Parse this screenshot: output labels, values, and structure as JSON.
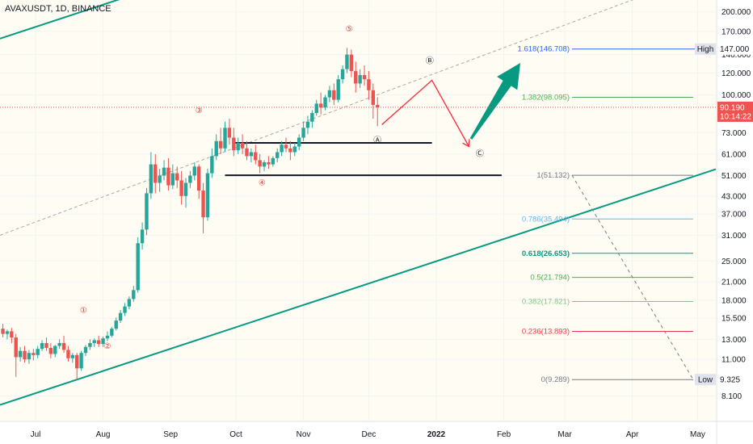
{
  "chart_data": {
    "type": "candlestick",
    "title": "AVAXUSDT, 1D, BINANCE",
    "y_scale": "log",
    "ylim": [
      7.2,
      215
    ],
    "y_ticks": [
      "200.000",
      "170.000",
      "147.000",
      "140.000",
      "120.000",
      "100.000",
      "90.190",
      "73.000",
      "61.000",
      "51.000",
      "43.000",
      "37.000",
      "31.000",
      "25.000",
      "21.000",
      "18.000",
      "15.500",
      "13.000",
      "11.000",
      "9.325",
      "8.100"
    ],
    "x_ticks": [
      "Jul",
      "Aug",
      "Sep",
      "Oct",
      "Nov",
      "Dec",
      "2022",
      "Feb",
      "Mar",
      "Apr",
      "May"
    ],
    "price": {
      "label": "90.190",
      "countdown": "10:14:22",
      "value": 90.19
    },
    "high_tag": {
      "label": "High",
      "value": "147.000"
    },
    "low_tag": {
      "label": "Low",
      "value": "9.325"
    },
    "fib_levels": [
      {
        "label": "1.618(146.708)",
        "value": 146.708,
        "color": "#2962ff"
      },
      {
        "label": "1.382(98.095)",
        "value": 98.095,
        "color": "#4caf50"
      },
      {
        "label": "1(51.132)",
        "value": 51.132,
        "color": "#787b86"
      },
      {
        "label": "0.786(35.494)",
        "value": 35.494,
        "color": "#64b5f6"
      },
      {
        "label": "0.618(26.653)",
        "value": 26.653,
        "color": "#089981"
      },
      {
        "label": "0.5(21.794)",
        "value": 21.794,
        "color": "#4caf50"
      },
      {
        "label": "0.382(17.821)",
        "value": 17.821,
        "color": "#81c784"
      },
      {
        "label": "0.236(13.893)",
        "value": 13.893,
        "color": "#f23645"
      },
      {
        "label": "0(9.289)",
        "value": 9.289,
        "color": "#787b86"
      }
    ],
    "wave_labels": [
      {
        "label": "①",
        "date": "2021-07-23",
        "value": 16.2,
        "color": "#e53935"
      },
      {
        "label": "②",
        "date": "2021-08-03",
        "value": 12.0,
        "color": "#e53935"
      },
      {
        "label": "③",
        "date": "2021-09-14",
        "value": 86,
        "color": "#e53935"
      },
      {
        "label": "④",
        "date": "2021-10-13",
        "value": 47,
        "color": "#e53935"
      },
      {
        "label": "⑤",
        "date": "2021-11-22",
        "value": 170,
        "color": "#e53935"
      },
      {
        "label": "Ⓐ",
        "date": "2021-12-05",
        "value": 67,
        "color": "#131722"
      },
      {
        "label": "Ⓑ",
        "date": "2021-12-29",
        "value": 130,
        "color": "#131722"
      },
      {
        "label": "Ⓒ",
        "date": "2022-01-21",
        "value": 60,
        "color": "#131722"
      }
    ],
    "candles": [
      {
        "date": "2021-06-16",
        "o": 14.2,
        "h": 14.8,
        "c": 13.6,
        "l": 13.2
      },
      {
        "date": "2021-06-18",
        "o": 13.6,
        "h": 14.1,
        "c": 13.9,
        "l": 13.0
      },
      {
        "date": "2021-06-20",
        "o": 13.9,
        "h": 14.3,
        "c": 13.2,
        "l": 12.6
      },
      {
        "date": "2021-06-22",
        "o": 13.2,
        "h": 13.6,
        "c": 11.2,
        "l": 9.5
      },
      {
        "date": "2021-06-24",
        "o": 11.2,
        "h": 12.2,
        "c": 11.8,
        "l": 10.8
      },
      {
        "date": "2021-06-26",
        "o": 11.8,
        "h": 12.3,
        "c": 11.0,
        "l": 10.7
      },
      {
        "date": "2021-06-28",
        "o": 11.0,
        "h": 11.9,
        "c": 11.6,
        "l": 10.6
      },
      {
        "date": "2021-06-30",
        "o": 11.6,
        "h": 12.0,
        "c": 11.4,
        "l": 10.9
      },
      {
        "date": "2021-07-02",
        "o": 11.4,
        "h": 12.3,
        "c": 12.0,
        "l": 11.1
      },
      {
        "date": "2021-07-04",
        "o": 12.0,
        "h": 12.9,
        "c": 12.6,
        "l": 11.8
      },
      {
        "date": "2021-07-06",
        "o": 12.6,
        "h": 13.2,
        "c": 12.1,
        "l": 11.8
      },
      {
        "date": "2021-07-08",
        "o": 12.1,
        "h": 12.6,
        "c": 11.5,
        "l": 11.1
      },
      {
        "date": "2021-07-10",
        "o": 11.5,
        "h": 12.4,
        "c": 12.3,
        "l": 11.2
      },
      {
        "date": "2021-07-12",
        "o": 12.3,
        "h": 13.0,
        "c": 12.6,
        "l": 12.0
      },
      {
        "date": "2021-07-14",
        "o": 12.6,
        "h": 13.4,
        "c": 11.9,
        "l": 11.6
      },
      {
        "date": "2021-07-16",
        "o": 11.9,
        "h": 12.3,
        "c": 11.1,
        "l": 10.8
      },
      {
        "date": "2021-07-18",
        "o": 11.1,
        "h": 11.6,
        "c": 11.4,
        "l": 10.7
      },
      {
        "date": "2021-07-20",
        "o": 11.4,
        "h": 11.6,
        "c": 10.2,
        "l": 9.3
      },
      {
        "date": "2021-07-22",
        "o": 10.2,
        "h": 11.8,
        "c": 11.6,
        "l": 10.0
      },
      {
        "date": "2021-07-24",
        "o": 11.6,
        "h": 12.4,
        "c": 12.2,
        "l": 11.3
      },
      {
        "date": "2021-07-26",
        "o": 12.2,
        "h": 13.0,
        "c": 12.6,
        "l": 11.9
      },
      {
        "date": "2021-07-28",
        "o": 12.6,
        "h": 13.1,
        "c": 12.9,
        "l": 12.2
      },
      {
        "date": "2021-07-30",
        "o": 12.9,
        "h": 13.4,
        "c": 12.5,
        "l": 12.2
      },
      {
        "date": "2021-08-01",
        "o": 12.5,
        "h": 13.3,
        "c": 13.1,
        "l": 12.2
      },
      {
        "date": "2021-08-03",
        "o": 13.1,
        "h": 13.9,
        "c": 13.4,
        "l": 12.8
      },
      {
        "date": "2021-08-05",
        "o": 13.4,
        "h": 14.4,
        "c": 14.2,
        "l": 13.2
      },
      {
        "date": "2021-08-07",
        "o": 14.2,
        "h": 15.6,
        "c": 15.2,
        "l": 14.0
      },
      {
        "date": "2021-08-09",
        "o": 15.2,
        "h": 16.6,
        "c": 16.2,
        "l": 14.9
      },
      {
        "date": "2021-08-11",
        "o": 16.2,
        "h": 17.6,
        "c": 17.1,
        "l": 15.8
      },
      {
        "date": "2021-08-13",
        "o": 17.1,
        "h": 18.6,
        "c": 18.2,
        "l": 16.7
      },
      {
        "date": "2021-08-15",
        "o": 18.2,
        "h": 20.3,
        "c": 19.6,
        "l": 17.8
      },
      {
        "date": "2021-08-17",
        "o": 19.6,
        "h": 30.5,
        "c": 29.0,
        "l": 19.2
      },
      {
        "date": "2021-08-19",
        "o": 29.0,
        "h": 34.5,
        "c": 32.5,
        "l": 27.5
      },
      {
        "date": "2021-08-21",
        "o": 32.5,
        "h": 46.0,
        "c": 44.0,
        "l": 31.0
      },
      {
        "date": "2021-08-23",
        "o": 44.0,
        "h": 62.0,
        "c": 56.0,
        "l": 42.0
      },
      {
        "date": "2021-08-25",
        "o": 56.0,
        "h": 61.0,
        "c": 48.0,
        "l": 44.0
      },
      {
        "date": "2021-08-27",
        "o": 48.0,
        "h": 54.0,
        "c": 51.0,
        "l": 44.5
      },
      {
        "date": "2021-08-29",
        "o": 51.0,
        "h": 58.0,
        "c": 54.5,
        "l": 49.0
      },
      {
        "date": "2021-08-31",
        "o": 54.5,
        "h": 59.0,
        "c": 47.0,
        "l": 45.0
      },
      {
        "date": "2021-09-02",
        "o": 47.0,
        "h": 56.0,
        "c": 52.0,
        "l": 45.5
      },
      {
        "date": "2021-09-04",
        "o": 52.0,
        "h": 55.0,
        "c": 49.0,
        "l": 46.0
      },
      {
        "date": "2021-09-06",
        "o": 49.0,
        "h": 53.0,
        "c": 43.0,
        "l": 40.0
      },
      {
        "date": "2021-09-08",
        "o": 43.0,
        "h": 50.0,
        "c": 48.0,
        "l": 39.0
      },
      {
        "date": "2021-09-10",
        "o": 48.0,
        "h": 53.0,
        "c": 51.0,
        "l": 46.0
      },
      {
        "date": "2021-09-12",
        "o": 51.0,
        "h": 57.0,
        "c": 55.0,
        "l": 49.0
      },
      {
        "date": "2021-09-14",
        "o": 55.0,
        "h": 56.0,
        "c": 45.0,
        "l": 42.0
      },
      {
        "date": "2021-09-16",
        "o": 45.0,
        "h": 48.0,
        "c": 36.0,
        "l": 31.5
      },
      {
        "date": "2021-09-18",
        "o": 36.0,
        "h": 54.0,
        "c": 52.0,
        "l": 35.0
      },
      {
        "date": "2021-09-20",
        "o": 52.0,
        "h": 64.0,
        "c": 60.0,
        "l": 50.0
      },
      {
        "date": "2021-09-22",
        "o": 60.0,
        "h": 72.0,
        "c": 68.0,
        "l": 58.0
      },
      {
        "date": "2021-09-24",
        "o": 68.0,
        "h": 76.0,
        "c": 64.0,
        "l": 61.0
      },
      {
        "date": "2021-09-26",
        "o": 64.0,
        "h": 80.0,
        "c": 76.0,
        "l": 62.0
      },
      {
        "date": "2021-09-28",
        "o": 76.0,
        "h": 82.0,
        "c": 70.0,
        "l": 66.0
      },
      {
        "date": "2021-09-30",
        "o": 70.0,
        "h": 76.0,
        "c": 63.0,
        "l": 60.0
      },
      {
        "date": "2021-10-02",
        "o": 63.0,
        "h": 70.0,
        "c": 67.0,
        "l": 61.0
      },
      {
        "date": "2021-10-04",
        "o": 67.0,
        "h": 72.0,
        "c": 64.0,
        "l": 61.0
      },
      {
        "date": "2021-10-06",
        "o": 64.0,
        "h": 68.0,
        "c": 60.0,
        "l": 58.0
      },
      {
        "date": "2021-10-08",
        "o": 60.0,
        "h": 64.0,
        "c": 62.0,
        "l": 57.0
      },
      {
        "date": "2021-10-10",
        "o": 62.0,
        "h": 66.0,
        "c": 58.0,
        "l": 56.0
      },
      {
        "date": "2021-10-12",
        "o": 58.0,
        "h": 61.0,
        "c": 55.0,
        "l": 52.0
      },
      {
        "date": "2021-10-14",
        "o": 55.0,
        "h": 58.0,
        "c": 57.0,
        "l": 53.0
      },
      {
        "date": "2021-10-16",
        "o": 57.0,
        "h": 60.0,
        "c": 56.0,
        "l": 54.0
      },
      {
        "date": "2021-10-18",
        "o": 56.0,
        "h": 60.0,
        "c": 59.0,
        "l": 55.0
      },
      {
        "date": "2021-10-20",
        "o": 59.0,
        "h": 64.0,
        "c": 62.0,
        "l": 57.0
      },
      {
        "date": "2021-10-22",
        "o": 62.0,
        "h": 68.0,
        "c": 66.0,
        "l": 60.0
      },
      {
        "date": "2021-10-24",
        "o": 66.0,
        "h": 70.0,
        "c": 64.0,
        "l": 62.0
      },
      {
        "date": "2021-10-26",
        "o": 64.0,
        "h": 68.0,
        "c": 62.0,
        "l": 58.0
      },
      {
        "date": "2021-10-28",
        "o": 62.0,
        "h": 67.0,
        "c": 65.0,
        "l": 60.0
      },
      {
        "date": "2021-10-30",
        "o": 65.0,
        "h": 72.0,
        "c": 70.0,
        "l": 63.0
      },
      {
        "date": "2021-11-01",
        "o": 70.0,
        "h": 80.0,
        "c": 76.0,
        "l": 68.0
      },
      {
        "date": "2021-11-03",
        "o": 76.0,
        "h": 84.0,
        "c": 80.0,
        "l": 72.0
      },
      {
        "date": "2021-11-05",
        "o": 80.0,
        "h": 88.0,
        "c": 86.0,
        "l": 76.0
      },
      {
        "date": "2021-11-07",
        "o": 86.0,
        "h": 96.0,
        "c": 93.0,
        "l": 84.0
      },
      {
        "date": "2021-11-09",
        "o": 93.0,
        "h": 102.0,
        "c": 90.0,
        "l": 85.0
      },
      {
        "date": "2021-11-11",
        "o": 90.0,
        "h": 100.0,
        "c": 98.0,
        "l": 88.0
      },
      {
        "date": "2021-11-13",
        "o": 98.0,
        "h": 108.0,
        "c": 104.0,
        "l": 94.0
      },
      {
        "date": "2021-11-15",
        "o": 104.0,
        "h": 110.0,
        "c": 96.0,
        "l": 92.0
      },
      {
        "date": "2021-11-17",
        "o": 96.0,
        "h": 118.0,
        "c": 114.0,
        "l": 94.0
      },
      {
        "date": "2021-11-19",
        "o": 114.0,
        "h": 128.0,
        "c": 124.0,
        "l": 110.0
      },
      {
        "date": "2021-11-21",
        "o": 124.0,
        "h": 148.0,
        "c": 140.0,
        "l": 120.0
      },
      {
        "date": "2021-11-23",
        "o": 140.0,
        "h": 146.0,
        "c": 122.0,
        "l": 116.0
      },
      {
        "date": "2021-11-25",
        "o": 122.0,
        "h": 132.0,
        "c": 110.0,
        "l": 102.0
      },
      {
        "date": "2021-11-27",
        "o": 110.0,
        "h": 124.0,
        "c": 118.0,
        "l": 106.0
      },
      {
        "date": "2021-11-29",
        "o": 118.0,
        "h": 128.0,
        "c": 114.0,
        "l": 108.0
      },
      {
        "date": "2021-12-01",
        "o": 114.0,
        "h": 122.0,
        "c": 104.0,
        "l": 96.0
      },
      {
        "date": "2021-12-03",
        "o": 104.0,
        "h": 110.0,
        "c": 92.0,
        "l": 82.0
      },
      {
        "date": "2021-12-05",
        "o": 92.0,
        "h": 98.0,
        "c": 90.19,
        "l": 77.0
      }
    ]
  }
}
